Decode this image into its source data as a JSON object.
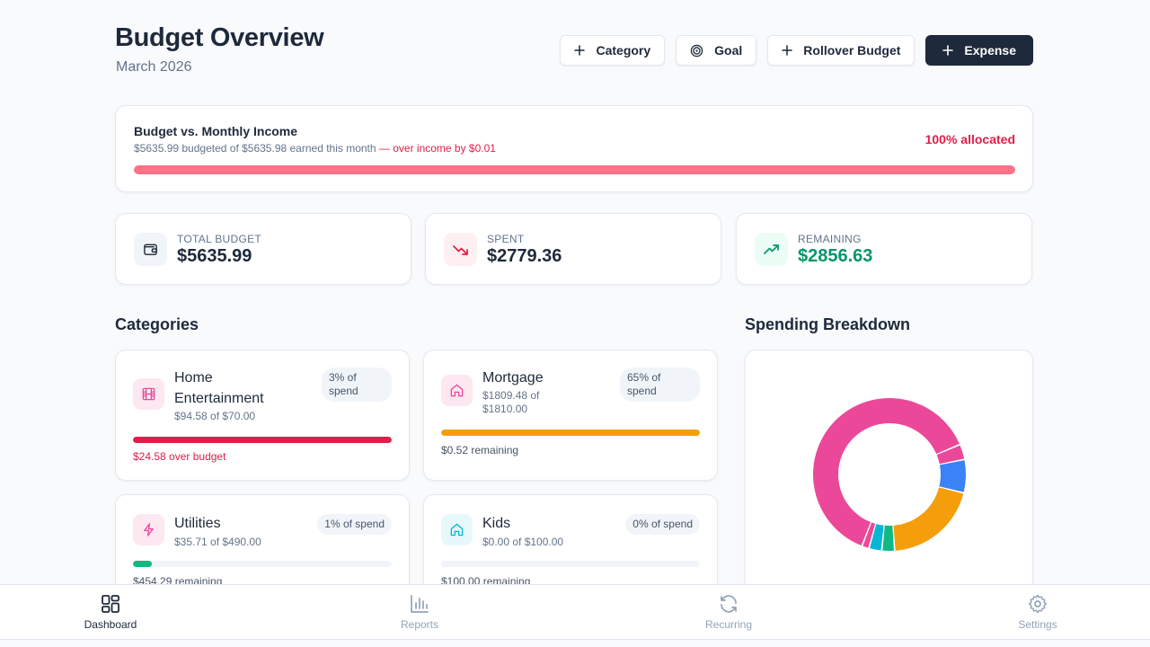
{
  "header": {
    "title": "Budget Overview",
    "subtitle": "March 2026",
    "actions": [
      {
        "label": "Category",
        "icon": "plus-icon"
      },
      {
        "label": "Goal",
        "icon": "target-icon"
      },
      {
        "label": "Rollover Budget",
        "icon": "plus-icon"
      },
      {
        "label": "Expense",
        "icon": "plus-icon"
      }
    ]
  },
  "income": {
    "title": "Budget vs. Monthly Income",
    "summary": "$5635.99 budgeted of $5635.98 earned this month",
    "warning": " — over income by $0.01",
    "allocated_label": "100% allocated",
    "allocated_fraction": 1.0
  },
  "stats": [
    {
      "label": "TOTAL BUDGET",
      "value": "$5635.99",
      "icon": "wallet-icon"
    },
    {
      "label": "SPENT",
      "value": "$2779.36",
      "icon": "trending-down-icon"
    },
    {
      "label": "REMAINING",
      "value": "$2856.63",
      "icon": "trending-up-icon"
    }
  ],
  "sections": {
    "categories": "Categories",
    "breakdown": "Spending Breakdown"
  },
  "categories": [
    {
      "name": "Home Entertainment",
      "amount": "$94.58 of $70.00",
      "share": "3% of spend",
      "status": "$24.58 over budget",
      "progress": 1.0,
      "icon": "film-icon",
      "bar_color": "#e11d48",
      "over": true
    },
    {
      "name": "Mortgage",
      "amount": "$1809.48 of $1810.00",
      "share": "65% of spend",
      "status": "$0.52 remaining",
      "progress": 0.9997,
      "icon": "home-icon",
      "bar_color": "#f59e0b",
      "over": false
    },
    {
      "name": "Utilities",
      "amount": "$35.71 of $490.00",
      "share": "1% of spend",
      "status": "$454.29 remaining",
      "progress": 0.073,
      "icon": "bolt-icon",
      "bar_color": "#10b981",
      "over": false
    },
    {
      "name": "Kids",
      "amount": "$0.00 of $100.00",
      "share": "0% of spend",
      "status": "$100.00 remaining",
      "progress": 0.0,
      "icon": "home-icon",
      "bar_color": "#06b6d4",
      "over": false
    }
  ],
  "chart_data": {
    "type": "pie",
    "series": [
      {
        "value": 58,
        "color": "#ec4899"
      },
      {
        "value": 3,
        "color": "#ec4899"
      },
      {
        "value": 6.5,
        "color": "#3b82f6"
      },
      {
        "value": 18.5,
        "color": "#f59e0b"
      },
      {
        "value": 2.5,
        "color": "#10b981"
      },
      {
        "value": 2.5,
        "color": "#06b6d4"
      },
      {
        "value": 1.4,
        "color": "#ec4899"
      }
    ]
  },
  "nav": [
    {
      "label": "Dashboard",
      "icon": "dashboard-icon",
      "active": true
    },
    {
      "label": "Reports",
      "icon": "bar-chart-icon",
      "active": false
    },
    {
      "label": "Recurring",
      "icon": "refresh-icon",
      "active": false
    },
    {
      "label": "Settings",
      "icon": "gear-icon",
      "active": false
    }
  ],
  "colors": {
    "accent_dark": "#1e293b",
    "danger": "#e11d48",
    "success": "#059669",
    "income_bar": "#fb7185"
  }
}
